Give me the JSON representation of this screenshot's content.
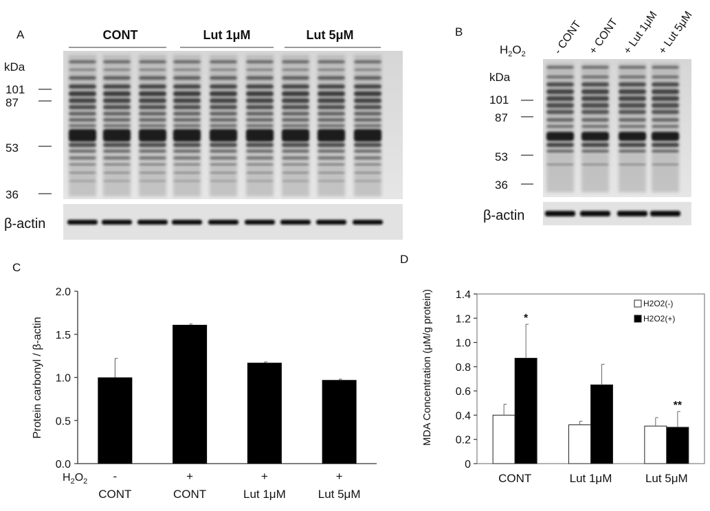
{
  "panel_a": {
    "letter": "A",
    "groups": [
      "CONT",
      "Lut 1μM",
      "Lut 5μM"
    ],
    "kda_label": "kDa",
    "markers": [
      "101",
      "87",
      "53",
      "36"
    ],
    "loading_label": "β-actin"
  },
  "panel_b": {
    "letter": "B",
    "h2o2_label": "H",
    "h2o2_sub": "2",
    "h2o2_tail": "O",
    "h2o2_sub2": "2",
    "lanes": [
      "- CONT",
      "+ CONT",
      "+ Lut 1μM",
      "+ Lut 5μM"
    ],
    "kda_label": "kDa",
    "markers": [
      "101",
      "87",
      "53",
      "36"
    ],
    "loading_label": "β-actin"
  },
  "chart_data": [
    {
      "panel": "C",
      "type": "bar",
      "ylabel": "Protein carbonyl / β-actin",
      "ylim": [
        0,
        2.0
      ],
      "yticks": [
        "0.0",
        "0.5",
        "1.0",
        "1.5",
        "2.0"
      ],
      "h2o2_signs": [
        "-",
        "+",
        "+",
        "+"
      ],
      "categories": [
        "CONT",
        "CONT",
        "Lut 1μM",
        "Lut 5μM"
      ],
      "values": [
        1.0,
        1.61,
        1.17,
        0.97
      ],
      "errors": [
        0.22,
        0.01,
        0.01,
        0.01
      ],
      "bar_color": "#000000"
    },
    {
      "panel": "D",
      "type": "bar",
      "ylabel": "MDA Concentration (μM/g protein)",
      "ylim": [
        0,
        1.4
      ],
      "yticks": [
        "0",
        "0.2",
        "0.4",
        "0.6",
        "0.8",
        "1.0",
        "1.2",
        "1.4"
      ],
      "categories": [
        "CONT",
        "Lut 1μM",
        "Lut 5μM"
      ],
      "series": [
        {
          "name": "H2O2(-)",
          "values": [
            0.4,
            0.32,
            0.31
          ],
          "errors": [
            0.09,
            0.03,
            0.07
          ],
          "color": "#ffffff"
        },
        {
          "name": "H2O2(+)",
          "values": [
            0.87,
            0.65,
            0.3
          ],
          "errors": [
            0.28,
            0.17,
            0.13
          ],
          "color": "#000000"
        }
      ],
      "annotations": [
        "*",
        "",
        "**"
      ],
      "legend_position": "top-right"
    }
  ]
}
